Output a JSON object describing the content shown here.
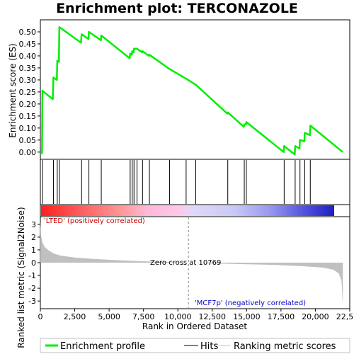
{
  "title": "Enrichment plot: TERCONAZOLE",
  "colors": {
    "enrichment_line": "#00ee00",
    "hits": "#000000",
    "metric_fill": "#c0c0c0",
    "zero_cross": "#808080",
    "positive_text": "#cc0000",
    "negative_text": "#0000cc"
  },
  "chart_data": [
    {
      "type": "line",
      "name": "enrichment-score-panel",
      "ylabel": "Enrichment score (ES)",
      "ylim": [
        -0.03,
        0.55
      ],
      "xlim": [
        0,
        22500
      ],
      "yticks": [
        "0.00",
        "0.05",
        "0.10",
        "0.15",
        "0.20",
        "0.25",
        "0.30",
        "0.35",
        "0.40",
        "0.45",
        "0.50"
      ],
      "ytick_values": [
        0.0,
        0.05,
        0.1,
        0.15,
        0.2,
        0.25,
        0.3,
        0.35,
        0.4,
        0.45,
        0.5
      ],
      "series": [
        {
          "name": "Enrichment profile",
          "points": [
            [
              0,
              -0.005
            ],
            [
              120,
              -0.005
            ],
            [
              150,
              0.255
            ],
            [
              900,
              0.22
            ],
            [
              950,
              0.31
            ],
            [
              1200,
              0.3
            ],
            [
              1230,
              0.38
            ],
            [
              1350,
              0.375
            ],
            [
              1380,
              0.52
            ],
            [
              2950,
              0.455
            ],
            [
              3000,
              0.49
            ],
            [
              3500,
              0.47
            ],
            [
              3530,
              0.5
            ],
            [
              4400,
              0.465
            ],
            [
              4430,
              0.485
            ],
            [
              6500,
              0.39
            ],
            [
              6530,
              0.41
            ],
            [
              6650,
              0.405
            ],
            [
              6680,
              0.42
            ],
            [
              6780,
              0.415
            ],
            [
              6810,
              0.43
            ],
            [
              7000,
              0.43
            ],
            [
              7030,
              0.43
            ],
            [
              7400,
              0.415
            ],
            [
              7430,
              0.42
            ],
            [
              7900,
              0.4
            ],
            [
              7930,
              0.405
            ],
            [
              9400,
              0.345
            ],
            [
              10600,
              0.305
            ],
            [
              11300,
              0.28
            ],
            [
              13600,
              0.16
            ],
            [
              13630,
              0.165
            ],
            [
              14800,
              0.105
            ],
            [
              14830,
              0.115
            ],
            [
              14950,
              0.115
            ],
            [
              14980,
              0.125
            ],
            [
              17700,
              0.0
            ],
            [
              17730,
              0.025
            ],
            [
              18500,
              -0.01
            ],
            [
              18530,
              0.025
            ],
            [
              18850,
              0.015
            ],
            [
              18880,
              0.05
            ],
            [
              19200,
              0.045
            ],
            [
              19230,
              0.08
            ],
            [
              19600,
              0.07
            ],
            [
              19630,
              0.11
            ],
            [
              22000,
              0.0
            ]
          ]
        }
      ]
    },
    {
      "type": "scatter",
      "name": "hits-panel",
      "series": [
        {
          "name": "Hits",
          "x": [
            150,
            950,
            1230,
            1380,
            3000,
            3530,
            4430,
            6530,
            6680,
            6810,
            7030,
            7430,
            7930,
            9400,
            10600,
            11300,
            13630,
            14830,
            14980,
            17730,
            18530,
            18880,
            19230,
            19630
          ]
        }
      ]
    },
    {
      "type": "area",
      "name": "ranked-metric-panel",
      "xlabel": "Rank in Ordered Dataset",
      "ylabel": "Ranked list metric (Signal2Noise)",
      "ylim": [
        -3.6,
        3.6
      ],
      "xlim": [
        0,
        22500
      ],
      "yticks": [
        "3",
        "2",
        "1",
        "0",
        "-1",
        "-2",
        "-3"
      ],
      "ytick_values": [
        3,
        2,
        1,
        0,
        -1,
        -2,
        -3
      ],
      "xticks": [
        "0",
        "2,500",
        "5,000",
        "7,500",
        "10,000",
        "12,500",
        "15,000",
        "17,500",
        "20,000",
        "22,500"
      ],
      "xtick_values": [
        0,
        2500,
        5000,
        7500,
        10000,
        12500,
        15000,
        17500,
        20000,
        22500
      ],
      "series": [
        {
          "name": "Ranking metric scores",
          "points": [
            [
              0,
              3.2
            ],
            [
              50,
              2.1
            ],
            [
              150,
              1.6
            ],
            [
              300,
              1.25
            ],
            [
              600,
              0.95
            ],
            [
              1000,
              0.7
            ],
            [
              1500,
              0.55
            ],
            [
              2500,
              0.4
            ],
            [
              4000,
              0.28
            ],
            [
              6000,
              0.17
            ],
            [
              8000,
              0.09
            ],
            [
              10769,
              0.0
            ],
            [
              13000,
              -0.07
            ],
            [
              15000,
              -0.12
            ],
            [
              17000,
              -0.17
            ],
            [
              19000,
              -0.27
            ],
            [
              20500,
              -0.38
            ],
            [
              21300,
              -0.55
            ],
            [
              21700,
              -0.85
            ],
            [
              21900,
              -1.4
            ],
            [
              22000,
              -3.4
            ]
          ]
        }
      ],
      "zero_cross": 10769,
      "annotations": {
        "zero_cross": "Zero cross at 10769",
        "positive": "'LTED' (positively correlated)",
        "negative": "'MCF7p' (negatively correlated)"
      }
    }
  ],
  "legend": {
    "items": [
      "Enrichment profile",
      "Hits",
      "Ranking metric scores"
    ]
  }
}
